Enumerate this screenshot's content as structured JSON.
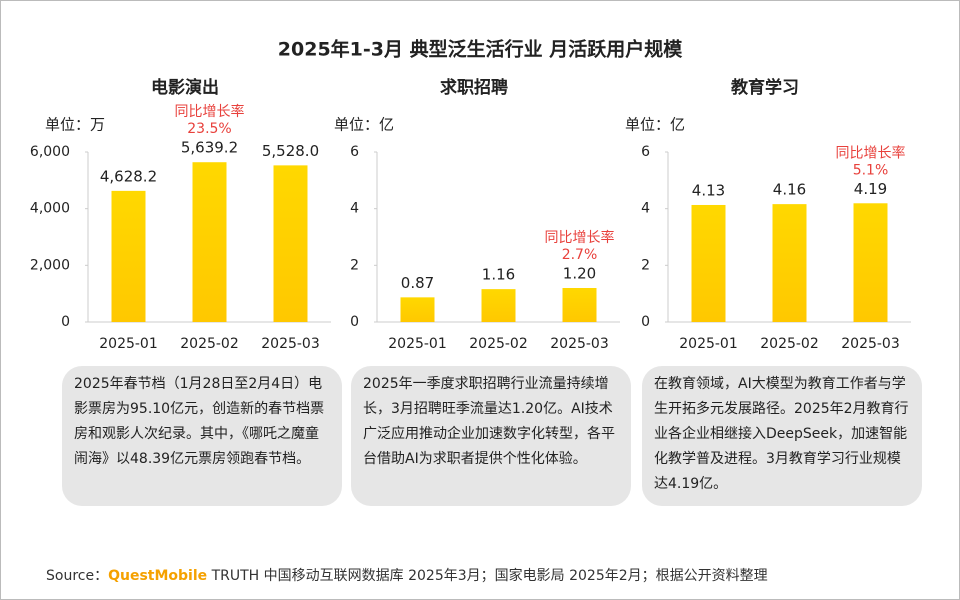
{
  "title": "2025年1-3月 典型泛生活行业 月活跃用户规模",
  "chart_data": [
    {
      "type": "bar",
      "title": "电影演出",
      "unit": "单位：万",
      "categories": [
        "2025-01",
        "2025-02",
        "2025-03"
      ],
      "values": [
        4628.2,
        5639.2,
        5528.0
      ],
      "value_labels": [
        "4,628.2",
        "5,639.2",
        "5,528.0"
      ],
      "ylim": [
        0,
        6000
      ],
      "yticks": [
        0,
        {
          "value": 2000,
          "label": "2,000"
        },
        {
          "value": 4000,
          "label": "4,000"
        },
        {
          "value": 6000,
          "label": "6,000"
        }
      ],
      "color": "#ffc800",
      "annotation": {
        "category": "2025-02",
        "title": "同比增长率",
        "value": 23.5,
        "value_label": "23.5%"
      },
      "note": "2025年春节档（1月28日至2月4日）电影票房为95.10亿元，创造新的春节档票房和观影人次纪录。其中，《哪吒之魔童闹海》以48.39亿元票房领跑春节档。"
    },
    {
      "type": "bar",
      "title": "求职招聘",
      "unit": "单位：亿",
      "categories": [
        "2025-01",
        "2025-02",
        "2025-03"
      ],
      "values": [
        0.87,
        1.16,
        1.2
      ],
      "value_labels": [
        "0.87",
        "1.16",
        "1.20"
      ],
      "ylim": [
        0,
        6
      ],
      "yticks": [
        0,
        2,
        4,
        6
      ],
      "color": "#ffc800",
      "annotation": {
        "category": "2025-03",
        "title": "同比增长率",
        "value": 2.7,
        "value_label": "2.7%"
      },
      "note": "2025年一季度求职招聘行业流量持续增长，3月招聘旺季流量达1.20亿。AI技术广泛应用推动企业加速数字化转型，各平台借助AI为求职者提供个性化体验。"
    },
    {
      "type": "bar",
      "title": "教育学习",
      "unit": "单位：亿",
      "categories": [
        "2025-01",
        "2025-02",
        "2025-03"
      ],
      "values": [
        4.13,
        4.16,
        4.19
      ],
      "value_labels": [
        "4.13",
        "4.16",
        "4.19"
      ],
      "ylim": [
        0,
        6
      ],
      "yticks": [
        0,
        2,
        4,
        6
      ],
      "color": "#ffc800",
      "annotation": {
        "category": "2025-03",
        "title": "同比增长率",
        "value": 5.1,
        "value_label": "5.1%"
      },
      "note": "在教育领域，AI大模型为教育工作者与学生开拓多元发展路径。2025年2月教育行业各企业相继接入DeepSeek，加速智能化教学普及进程。3月教育学习行业规模达4.19亿。"
    }
  ],
  "source": {
    "prefix": "Source：",
    "brand": "QuestMobile",
    "text": " TRUTH 中国移动互联网数据库 2025年3月；国家电影局 2025年2月；根据公开资料整理"
  }
}
